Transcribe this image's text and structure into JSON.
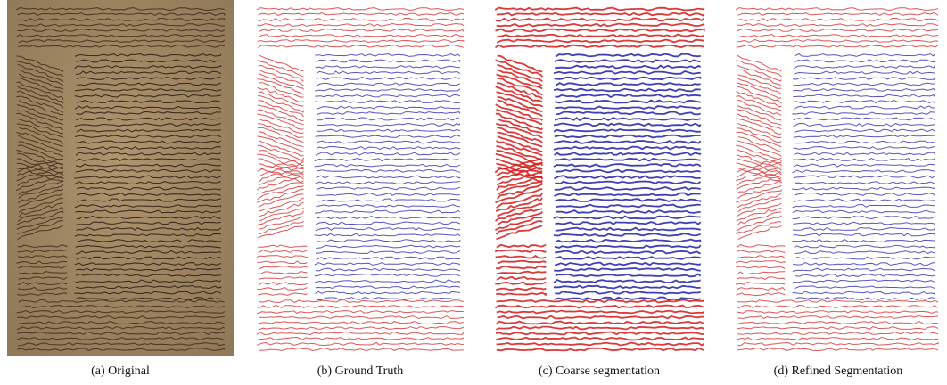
{
  "figure": {
    "panels": [
      {
        "caption": "(a) Original"
      },
      {
        "caption": "(b) Ground Truth"
      },
      {
        "caption": "(c) Coarse segmentation"
      },
      {
        "caption": "(d) Refined Segmentation"
      }
    ]
  }
}
